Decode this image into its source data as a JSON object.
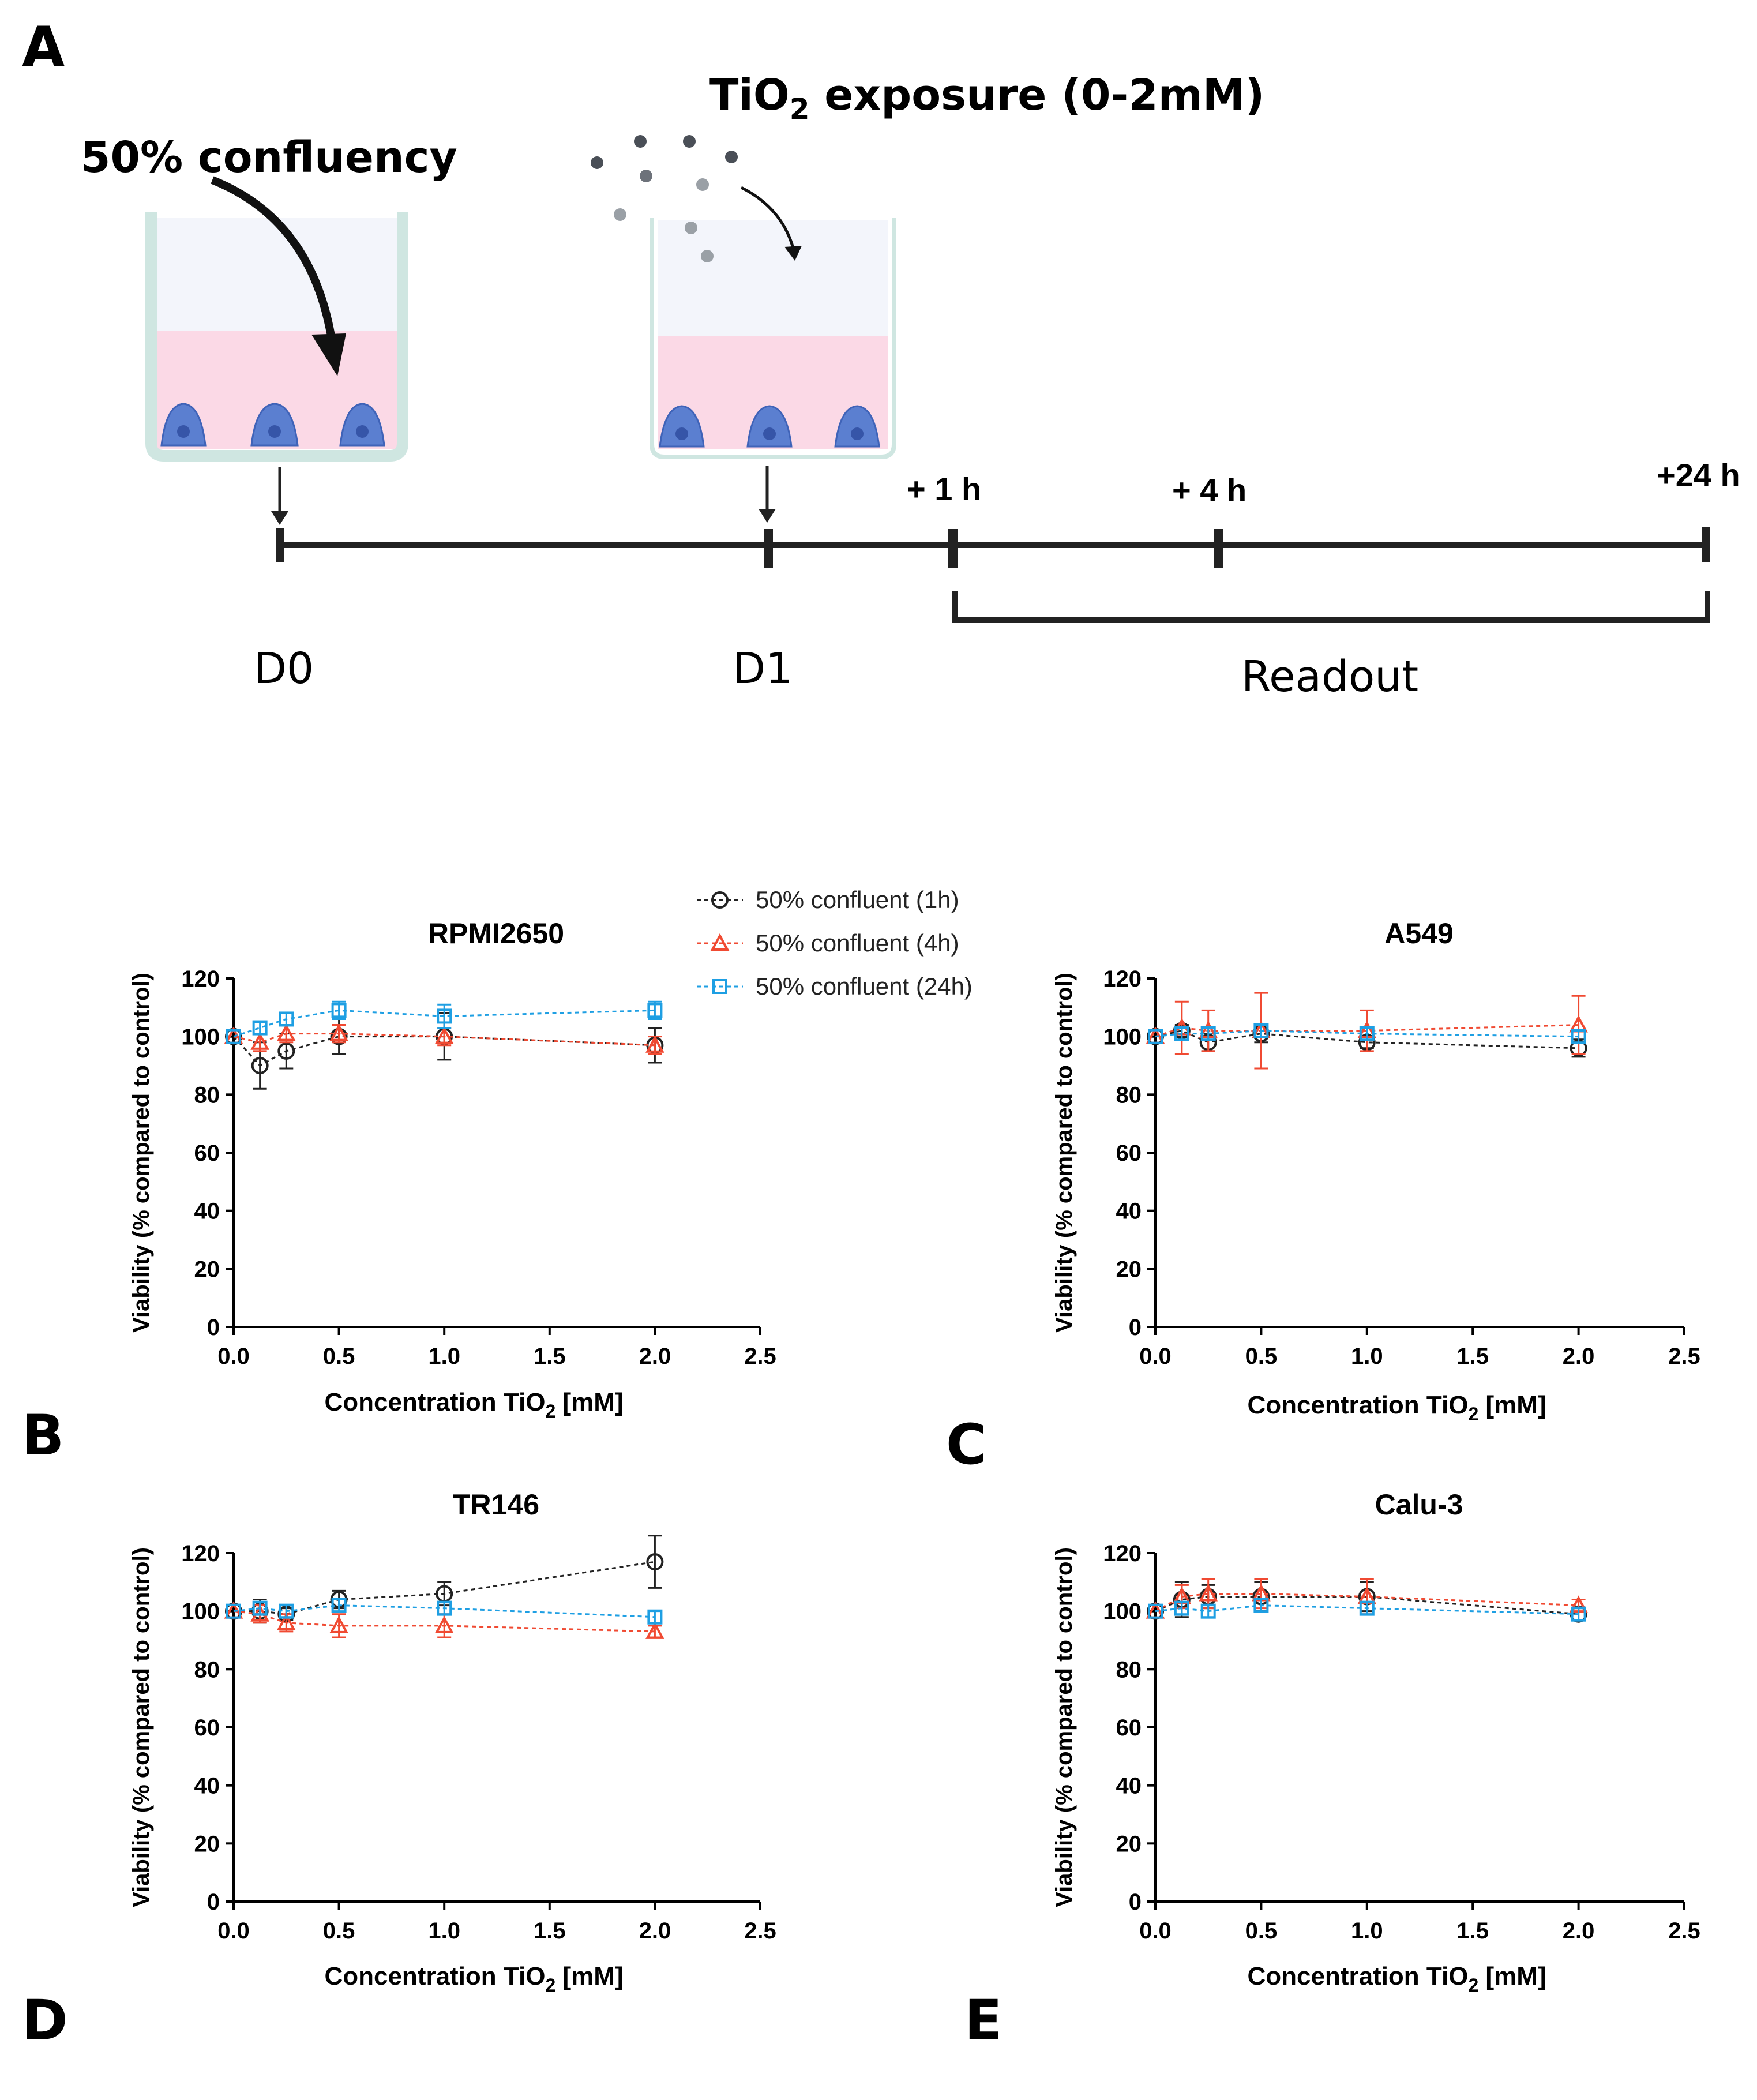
{
  "panel_letters": {
    "a": "A",
    "b": "B",
    "c": "C",
    "d": "D",
    "e": "E"
  },
  "schematic": {
    "confluency_label": "50% confluency",
    "exposure_label_prefix": "TiO",
    "exposure_label_sub": "2",
    "exposure_label_suffix": " exposure (0-2mM)",
    "timepoints": {
      "t1": "+ 1 h",
      "t4": "+ 4 h",
      "t24": "+24 h"
    },
    "days": {
      "d0": "D0",
      "d1": "D1"
    },
    "readout": "Readout",
    "colors": {
      "well_wall": "#cfe6e1",
      "medium_top": "#f3f5fb",
      "medium_bottom": "#fbd9e6",
      "cell": "#5b7fd0",
      "nucleus": "#3655a8",
      "particle_dark": "#4a4f57",
      "particle_light": "#9aa0a6"
    }
  },
  "legend": [
    {
      "label": "50% confluent (1h)",
      "color": "#222222",
      "marker": "circle"
    },
    {
      "label": "50% confluent (4h)",
      "color": "#f04a32",
      "marker": "triangle"
    },
    {
      "label": "50% confluent (24h)",
      "color": "#1e9fe3",
      "marker": "square"
    }
  ],
  "chart_data": [
    {
      "type": "line",
      "title": "RPMI2650",
      "xlabel_prefix": "Concentration TiO",
      "xlabel_sub": "2",
      "xlabel_suffix": " [mM]",
      "ylabel": "Viability (% compared to control)",
      "xlim": [
        0,
        2.5
      ],
      "ylim": [
        0,
        120
      ],
      "xticks": [
        "0.0",
        "0.5",
        "1.0",
        "1.5",
        "2.0",
        "2.5"
      ],
      "yticks": [
        "0",
        "20",
        "40",
        "60",
        "80",
        "100",
        "120"
      ],
      "x": [
        0,
        0.125,
        0.25,
        0.5,
        1.0,
        2.0
      ],
      "series": [
        {
          "name": "50% confluent (1h)",
          "values": [
            100,
            90,
            95,
            100,
            100,
            97
          ],
          "err": [
            1,
            8,
            6,
            6,
            8,
            6
          ]
        },
        {
          "name": "50% confluent (4h)",
          "values": [
            100,
            98,
            101,
            101,
            100,
            97
          ],
          "err": [
            1,
            3,
            3,
            3,
            3,
            3
          ]
        },
        {
          "name": "50% confluent (24h)",
          "values": [
            100,
            103,
            106,
            109,
            107,
            109
          ],
          "err": [
            1,
            2,
            2,
            3,
            4,
            3
          ]
        }
      ]
    },
    {
      "type": "line",
      "title": "A549",
      "xlabel_prefix": "Concentration TiO",
      "xlabel_sub": "2",
      "xlabel_suffix": " [mM]",
      "ylabel": "Viability (% compared to control)",
      "xlim": [
        0,
        2.5
      ],
      "ylim": [
        0,
        120
      ],
      "xticks": [
        "0.0",
        "0.5",
        "1.0",
        "1.5",
        "2.0",
        "2.5"
      ],
      "yticks": [
        "0",
        "20",
        "40",
        "60",
        "80",
        "100",
        "120"
      ],
      "x": [
        0,
        0.125,
        0.25,
        0.5,
        1.0,
        2.0
      ],
      "series": [
        {
          "name": "50% confluent (1h)",
          "values": [
            100,
            102,
            98,
            101,
            98,
            96
          ],
          "err": [
            1,
            2,
            3,
            3,
            2,
            3
          ]
        },
        {
          "name": "50% confluent (4h)",
          "values": [
            100,
            103,
            102,
            102,
            102,
            104
          ],
          "err": [
            1,
            9,
            7,
            13,
            7,
            10
          ]
        },
        {
          "name": "50% confluent (24h)",
          "values": [
            100,
            101,
            101,
            102,
            101,
            100
          ],
          "err": [
            1,
            2,
            2,
            2,
            2,
            2
          ]
        }
      ]
    },
    {
      "type": "line",
      "title": "TR146",
      "xlabel_prefix": "Concentration TiO",
      "xlabel_sub": "2",
      "xlabel_suffix": " [mM]",
      "ylabel": "Viability (% compared to control)",
      "xlim": [
        0,
        2.5
      ],
      "ylim": [
        0,
        120
      ],
      "xticks": [
        "0.0",
        "0.5",
        "1.0",
        "1.5",
        "2.0",
        "2.5"
      ],
      "yticks": [
        "0",
        "20",
        "40",
        "60",
        "80",
        "100",
        "120"
      ],
      "x": [
        0,
        0.125,
        0.25,
        0.5,
        1.0,
        2.0
      ],
      "series": [
        {
          "name": "50% confluent (1h)",
          "values": [
            100,
            100,
            99,
            104,
            106,
            117
          ],
          "err": [
            1,
            4,
            2,
            3,
            4,
            9
          ]
        },
        {
          "name": "50% confluent (4h)",
          "values": [
            100,
            99,
            96,
            95,
            95,
            93
          ],
          "err": [
            1,
            3,
            3,
            4,
            4,
            2
          ]
        },
        {
          "name": "50% confluent (24h)",
          "values": [
            100,
            101,
            100,
            102,
            101,
            98
          ],
          "err": [
            1,
            2,
            2,
            2,
            2,
            2
          ]
        }
      ]
    },
    {
      "type": "line",
      "title": "Calu-3",
      "xlabel_prefix": "Concentration TiO",
      "xlabel_sub": "2",
      "xlabel_suffix": " [mM]",
      "ylabel": "Viability (% compared to control)",
      "xlim": [
        0,
        2.5
      ],
      "ylim": [
        0,
        120
      ],
      "xticks": [
        "0.0",
        "0.5",
        "1.0",
        "1.5",
        "2.0",
        "2.5"
      ],
      "yticks": [
        "0",
        "20",
        "40",
        "60",
        "80",
        "100",
        "120"
      ],
      "x": [
        0,
        0.125,
        0.25,
        0.5,
        1.0,
        2.0
      ],
      "series": [
        {
          "name": "50% confluent (1h)",
          "values": [
            100,
            104,
            105,
            105,
            105,
            99
          ],
          "err": [
            1,
            6,
            4,
            5,
            5,
            2
          ]
        },
        {
          "name": "50% confluent (4h)",
          "values": [
            100,
            105,
            106,
            106,
            105,
            102
          ],
          "err": [
            1,
            4,
            5,
            5,
            6,
            2
          ]
        },
        {
          "name": "50% confluent (24h)",
          "values": [
            100,
            101,
            100,
            102,
            101,
            99
          ],
          "err": [
            1,
            2,
            2,
            2,
            2,
            2
          ]
        }
      ]
    }
  ]
}
